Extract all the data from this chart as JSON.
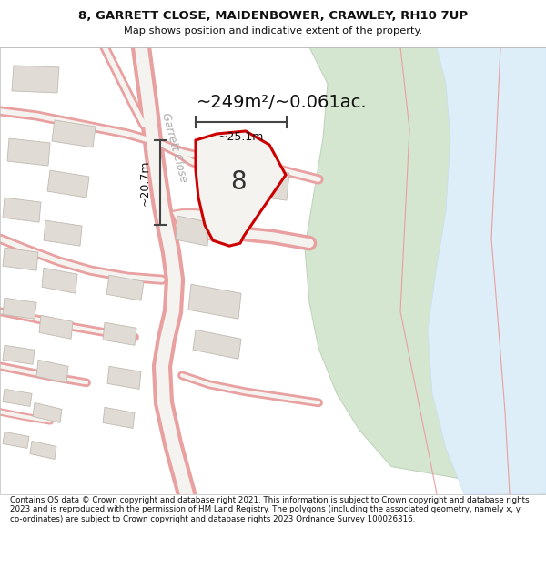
{
  "title_line1": "8, GARRETT CLOSE, MAIDENBOWER, CRAWLEY, RH10 7UP",
  "title_line2": "Map shows position and indicative extent of the property.",
  "area_label": "~249m²/~0.061ac.",
  "plot_number": "8",
  "dim_width": "~25.1m",
  "dim_height": "~20.7m",
  "street_label": "Garrett Close",
  "footer_text": "Contains OS data © Crown copyright and database right 2021. This information is subject to Crown copyright and database rights 2023 and is reproduced with the permission of HM Land Registry. The polygons (including the associated geometry, namely x, y co-ordinates) are subject to Crown copyright and database rights 2023 Ordnance Survey 100026316.",
  "bg_color": "#f5f3f0",
  "road_line_color": "#e8a0a0",
  "road_fill_color": "#f5e8e8",
  "building_fill": "#e0dbd4",
  "building_edge": "#c0bab2",
  "green_fill": "#d4e6d0",
  "green_edge": "#c0d4bc",
  "water_fill": "#ddeef8",
  "water_edge": "#c8dff0",
  "plot_fill": "#f0ede8",
  "plot_edge": "#cc0000",
  "dim_color": "#444444",
  "street_label_color": "#aaaaaa",
  "title_color": "#111111",
  "footer_color": "#111111",
  "white": "#ffffff"
}
